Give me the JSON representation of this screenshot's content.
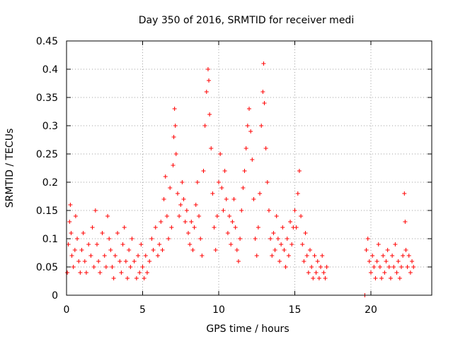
{
  "chart_data": {
    "type": "scatter",
    "title": "Day 350 of 2016, SRMTID for receiver medi",
    "xlabel": "GPS time / hours",
    "ylabel": "SRMTID / TECUs",
    "xlim": [
      0,
      24
    ],
    "ylim": [
      0,
      0.45
    ],
    "grid": true,
    "marker": "+",
    "color": "#ff0000",
    "x_ticks": [
      {
        "value": 0,
        "label": "0"
      },
      {
        "value": 5,
        "label": "5"
      },
      {
        "value": 10,
        "label": "10"
      },
      {
        "value": 15,
        "label": "15"
      },
      {
        "value": 20,
        "label": "20"
      }
    ],
    "y_ticks": [
      {
        "value": 0,
        "label": "0"
      },
      {
        "value": 0.05,
        "label": "0.05"
      },
      {
        "value": 0.1,
        "label": "0.1"
      },
      {
        "value": 0.15,
        "label": "0.15"
      },
      {
        "value": 0.2,
        "label": "0.2"
      },
      {
        "value": 0.25,
        "label": "0.25"
      },
      {
        "value": 0.3,
        "label": "0.3"
      },
      {
        "value": 0.35,
        "label": "0.35"
      },
      {
        "value": 0.4,
        "label": "0.4"
      },
      {
        "value": 0.45,
        "label": "0.45"
      }
    ],
    "series": [
      {
        "name": "SRMTID",
        "points": [
          [
            0.05,
            0.04
          ],
          [
            0.12,
            0.09
          ],
          [
            0.2,
            0.13
          ],
          [
            0.25,
            0.16
          ],
          [
            0.3,
            0.11
          ],
          [
            0.35,
            0.07
          ],
          [
            0.45,
            0.05
          ],
          [
            0.55,
            0.08
          ],
          [
            0.6,
            0.14
          ],
          [
            0.7,
            0.1
          ],
          [
            0.8,
            0.06
          ],
          [
            0.9,
            0.04
          ],
          [
            1.0,
            0.08
          ],
          [
            1.1,
            0.11
          ],
          [
            1.2,
            0.06
          ],
          [
            1.3,
            0.04
          ],
          [
            1.45,
            0.09
          ],
          [
            1.6,
            0.07
          ],
          [
            1.7,
            0.12
          ],
          [
            1.8,
            0.05
          ],
          [
            1.9,
            0.15
          ],
          [
            2.0,
            0.09
          ],
          [
            2.1,
            0.06
          ],
          [
            2.2,
            0.04
          ],
          [
            2.35,
            0.11
          ],
          [
            2.5,
            0.07
          ],
          [
            2.6,
            0.05
          ],
          [
            2.7,
            0.14
          ],
          [
            2.8,
            0.1
          ],
          [
            2.9,
            0.08
          ],
          [
            3.0,
            0.05
          ],
          [
            3.1,
            0.03
          ],
          [
            3.2,
            0.07
          ],
          [
            3.35,
            0.11
          ],
          [
            3.5,
            0.06
          ],
          [
            3.6,
            0.04
          ],
          [
            3.7,
            0.09
          ],
          [
            3.8,
            0.12
          ],
          [
            3.9,
            0.06
          ],
          [
            4.0,
            0.03
          ],
          [
            4.1,
            0.08
          ],
          [
            4.2,
            0.05
          ],
          [
            4.3,
            0.1
          ],
          [
            4.45,
            0.06
          ],
          [
            4.6,
            0.03
          ],
          [
            4.7,
            0.07
          ],
          [
            4.8,
            0.04
          ],
          [
            4.9,
            0.09
          ],
          [
            5.0,
            0.05
          ],
          [
            5.1,
            0.03
          ],
          [
            5.2,
            0.07
          ],
          [
            5.3,
            0.04
          ],
          [
            5.45,
            0.06
          ],
          [
            5.6,
            0.1
          ],
          [
            5.7,
            0.08
          ],
          [
            5.85,
            0.12
          ],
          [
            6.0,
            0.07
          ],
          [
            6.1,
            0.09
          ],
          [
            6.2,
            0.13
          ],
          [
            6.3,
            0.08
          ],
          [
            6.4,
            0.17
          ],
          [
            6.5,
            0.21
          ],
          [
            6.6,
            0.14
          ],
          [
            6.7,
            0.1
          ],
          [
            6.8,
            0.19
          ],
          [
            6.9,
            0.12
          ],
          [
            7.0,
            0.23
          ],
          [
            7.05,
            0.28
          ],
          [
            7.1,
            0.33
          ],
          [
            7.15,
            0.3
          ],
          [
            7.2,
            0.25
          ],
          [
            7.3,
            0.18
          ],
          [
            7.4,
            0.14
          ],
          [
            7.5,
            0.16
          ],
          [
            7.6,
            0.2
          ],
          [
            7.7,
            0.17
          ],
          [
            7.8,
            0.13
          ],
          [
            7.9,
            0.15
          ],
          [
            8.0,
            0.11
          ],
          [
            8.1,
            0.09
          ],
          [
            8.2,
            0.13
          ],
          [
            8.3,
            0.08
          ],
          [
            8.4,
            0.12
          ],
          [
            8.5,
            0.16
          ],
          [
            8.6,
            0.2
          ],
          [
            8.7,
            0.14
          ],
          [
            8.8,
            0.1
          ],
          [
            8.9,
            0.07
          ],
          [
            9.0,
            0.22
          ],
          [
            9.1,
            0.3
          ],
          [
            9.2,
            0.36
          ],
          [
            9.3,
            0.4
          ],
          [
            9.35,
            0.38
          ],
          [
            9.4,
            0.32
          ],
          [
            9.5,
            0.26
          ],
          [
            9.6,
            0.18
          ],
          [
            9.7,
            0.12
          ],
          [
            9.8,
            0.08
          ],
          [
            9.9,
            0.14
          ],
          [
            10.0,
            0.2
          ],
          [
            10.1,
            0.25
          ],
          [
            10.2,
            0.19
          ],
          [
            10.3,
            0.15
          ],
          [
            10.4,
            0.22
          ],
          [
            10.5,
            0.17
          ],
          [
            10.6,
            0.11
          ],
          [
            10.7,
            0.14
          ],
          [
            10.8,
            0.09
          ],
          [
            10.9,
            0.13
          ],
          [
            11.0,
            0.17
          ],
          [
            11.1,
            0.12
          ],
          [
            11.2,
            0.08
          ],
          [
            11.3,
            0.06
          ],
          [
            11.4,
            0.1
          ],
          [
            11.5,
            0.15
          ],
          [
            11.6,
            0.19
          ],
          [
            11.7,
            0.22
          ],
          [
            11.8,
            0.26
          ],
          [
            11.9,
            0.3
          ],
          [
            12.0,
            0.33
          ],
          [
            12.1,
            0.29
          ],
          [
            12.2,
            0.24
          ],
          [
            12.3,
            0.17
          ],
          [
            12.4,
            0.1
          ],
          [
            12.5,
            0.07
          ],
          [
            12.6,
            0.12
          ],
          [
            12.7,
            0.18
          ],
          [
            12.8,
            0.3
          ],
          [
            12.9,
            0.36
          ],
          [
            12.95,
            0.41
          ],
          [
            13.0,
            0.34
          ],
          [
            13.1,
            0.26
          ],
          [
            13.2,
            0.2
          ],
          [
            13.3,
            0.15
          ],
          [
            13.4,
            0.1
          ],
          [
            13.5,
            0.07
          ],
          [
            13.6,
            0.11
          ],
          [
            13.7,
            0.08
          ],
          [
            13.8,
            0.14
          ],
          [
            13.9,
            0.1
          ],
          [
            14.0,
            0.06
          ],
          [
            14.1,
            0.09
          ],
          [
            14.2,
            0.12
          ],
          [
            14.3,
            0.08
          ],
          [
            14.4,
            0.05
          ],
          [
            14.5,
            0.1
          ],
          [
            14.6,
            0.07
          ],
          [
            14.7,
            0.13
          ],
          [
            14.8,
            0.09
          ],
          [
            14.9,
            0.12
          ],
          [
            15.0,
            0.15
          ],
          [
            15.1,
            0.12
          ],
          [
            15.2,
            0.18
          ],
          [
            15.3,
            0.22
          ],
          [
            15.4,
            0.14
          ],
          [
            15.5,
            0.09
          ],
          [
            15.6,
            0.06
          ],
          [
            15.7,
            0.11
          ],
          [
            15.8,
            0.07
          ],
          [
            15.9,
            0.04
          ],
          [
            16.0,
            0.08
          ],
          [
            16.1,
            0.05
          ],
          [
            16.2,
            0.03
          ],
          [
            16.3,
            0.07
          ],
          [
            16.4,
            0.04
          ],
          [
            16.5,
            0.06
          ],
          [
            16.6,
            0.03
          ],
          [
            16.7,
            0.05
          ],
          [
            16.8,
            0.07
          ],
          [
            16.9,
            0.04
          ],
          [
            17.0,
            0.03
          ],
          [
            17.1,
            0.05
          ],
          [
            19.6,
            0.0
          ],
          [
            19.7,
            0.08
          ],
          [
            19.8,
            0.1
          ],
          [
            19.9,
            0.06
          ],
          [
            20.0,
            0.04
          ],
          [
            20.1,
            0.07
          ],
          [
            20.2,
            0.05
          ],
          [
            20.3,
            0.03
          ],
          [
            20.4,
            0.06
          ],
          [
            20.5,
            0.09
          ],
          [
            20.6,
            0.05
          ],
          [
            20.7,
            0.03
          ],
          [
            20.8,
            0.07
          ],
          [
            20.9,
            0.04
          ],
          [
            21.0,
            0.06
          ],
          [
            21.1,
            0.08
          ],
          [
            21.2,
            0.05
          ],
          [
            21.3,
            0.03
          ],
          [
            21.4,
            0.07
          ],
          [
            21.5,
            0.05
          ],
          [
            21.6,
            0.09
          ],
          [
            21.7,
            0.04
          ],
          [
            21.8,
            0.06
          ],
          [
            21.9,
            0.03
          ],
          [
            22.0,
            0.05
          ],
          [
            22.1,
            0.07
          ],
          [
            22.2,
            0.18
          ],
          [
            22.25,
            0.13
          ],
          [
            22.3,
            0.08
          ],
          [
            22.4,
            0.05
          ],
          [
            22.5,
            0.07
          ],
          [
            22.6,
            0.04
          ],
          [
            22.7,
            0.06
          ],
          [
            22.8,
            0.05
          ]
        ]
      }
    ]
  }
}
